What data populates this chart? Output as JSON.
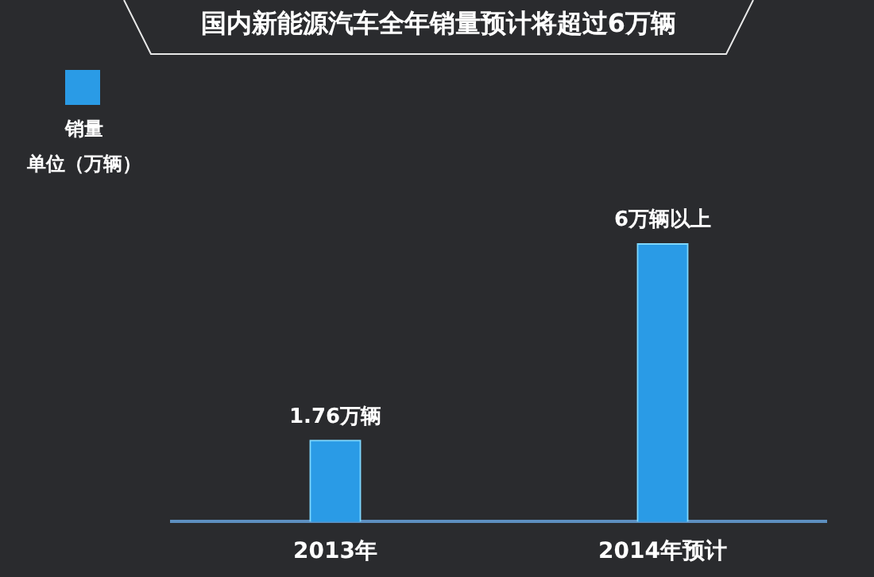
{
  "chart_data": {
    "type": "bar",
    "title": "国内新能源汽车全年销量预计将超过6万辆",
    "ylabel": "单位（万辆）",
    "categories": [
      "2013年",
      "2014年预计"
    ],
    "series": [
      {
        "name": "销量",
        "color": "#2a9be6",
        "values": [
          1.76,
          6
        ],
        "value_labels": [
          "1.76万辆",
          "6万辆以上"
        ]
      }
    ],
    "legend": "top left",
    "tick_labels": "x"
  }
}
